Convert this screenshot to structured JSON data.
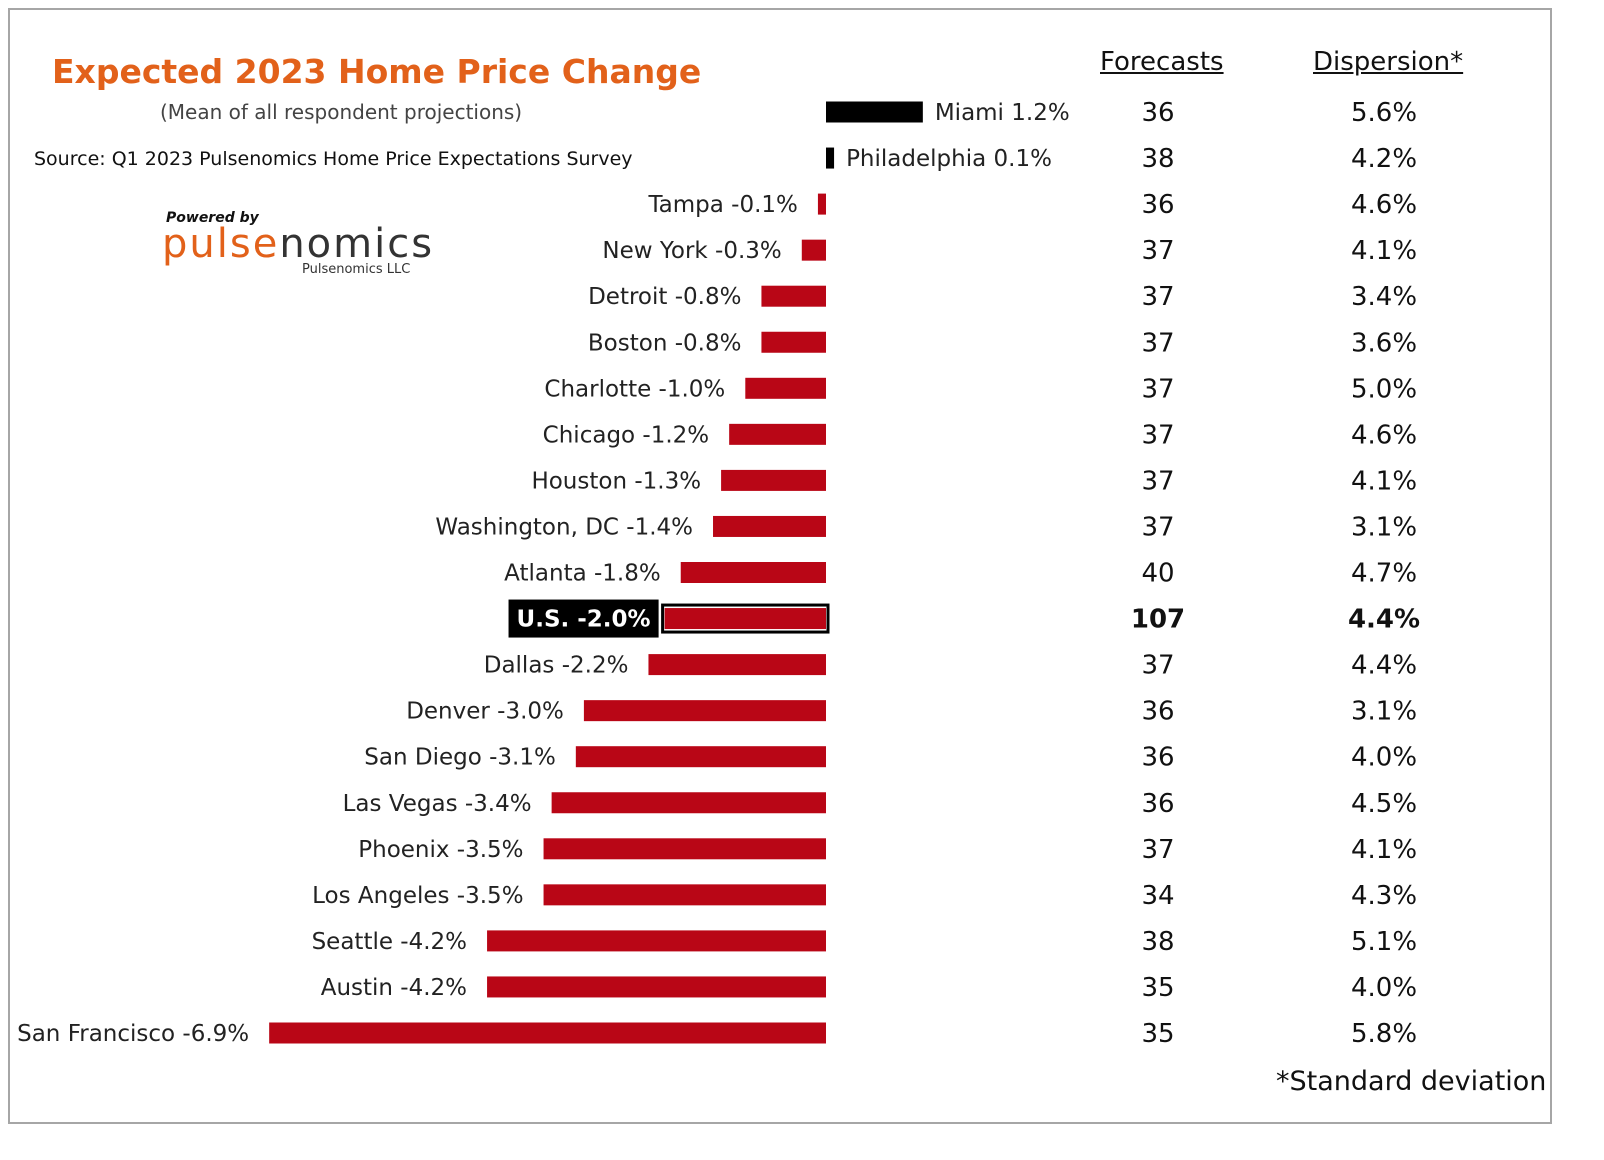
{
  "title": "Expected 2023 Home Price Change",
  "subtitle": "(Mean of all respondent projections)",
  "source": "Source: Q1 2023 Pulsenomics Home Price Expectations Survey",
  "logo": {
    "powered_by": "Powered by",
    "brand_part1": "pulse",
    "brand_part2": "nomics",
    "company": "Pulsenomics LLC"
  },
  "columns": {
    "forecasts": "Forecasts",
    "dispersion": "Dispersion*"
  },
  "footnote": "*Standard deviation",
  "colors": {
    "negative": "#b90616",
    "positive": "#000000",
    "title": "#e2611a",
    "highlight_box": "#000000"
  },
  "chart_data": {
    "type": "bar",
    "orientation": "horizontal",
    "categories": [
      "Miami",
      "Philadelphia",
      "Tampa",
      "New York",
      "Detroit",
      "Boston",
      "Charlotte",
      "Chicago",
      "Houston",
      "Washington, DC",
      "Atlanta",
      "U.S.",
      "Dallas",
      "Denver",
      "San Diego",
      "Las Vegas",
      "Phoenix",
      "Los Angeles",
      "Seattle",
      "Austin",
      "San Francisco"
    ],
    "values": [
      1.2,
      0.1,
      -0.1,
      -0.3,
      -0.8,
      -0.8,
      -1.0,
      -1.2,
      -1.3,
      -1.4,
      -1.8,
      -2.0,
      -2.2,
      -3.0,
      -3.1,
      -3.4,
      -3.5,
      -3.5,
      -4.2,
      -4.2,
      -6.9
    ],
    "labels": [
      "Miami 1.2%",
      "Philadelphia 0.1%",
      "Tampa -0.1%",
      "New York -0.3%",
      "Detroit -0.8%",
      "Boston -0.8%",
      "Charlotte -1.0%",
      "Chicago -1.2%",
      "Houston -1.3%",
      "Washington, DC -1.4%",
      "Atlanta -1.8%",
      "U.S. -2.0%",
      "Dallas -2.2%",
      "Denver -3.0%",
      "San Diego -3.1%",
      "Las Vegas -3.4%",
      "Phoenix -3.5%",
      "Los Angeles -3.5%",
      "Seattle -4.2%",
      "Austin -4.2%",
      "San Francisco -6.9%"
    ],
    "forecasts": [
      "36",
      "38",
      "36",
      "37",
      "37",
      "37",
      "37",
      "37",
      "37",
      "37",
      "40",
      "107",
      "37",
      "36",
      "36",
      "36",
      "37",
      "34",
      "38",
      "35",
      "35"
    ],
    "dispersion": [
      "5.6%",
      "4.2%",
      "4.6%",
      "4.1%",
      "3.4%",
      "3.6%",
      "5.0%",
      "4.6%",
      "4.1%",
      "3.1%",
      "4.7%",
      "4.4%",
      "4.4%",
      "3.1%",
      "4.0%",
      "4.5%",
      "4.1%",
      "4.3%",
      "5.1%",
      "4.0%",
      "5.8%"
    ],
    "highlight": "U.S.",
    "grid": false,
    "legend": "none"
  }
}
